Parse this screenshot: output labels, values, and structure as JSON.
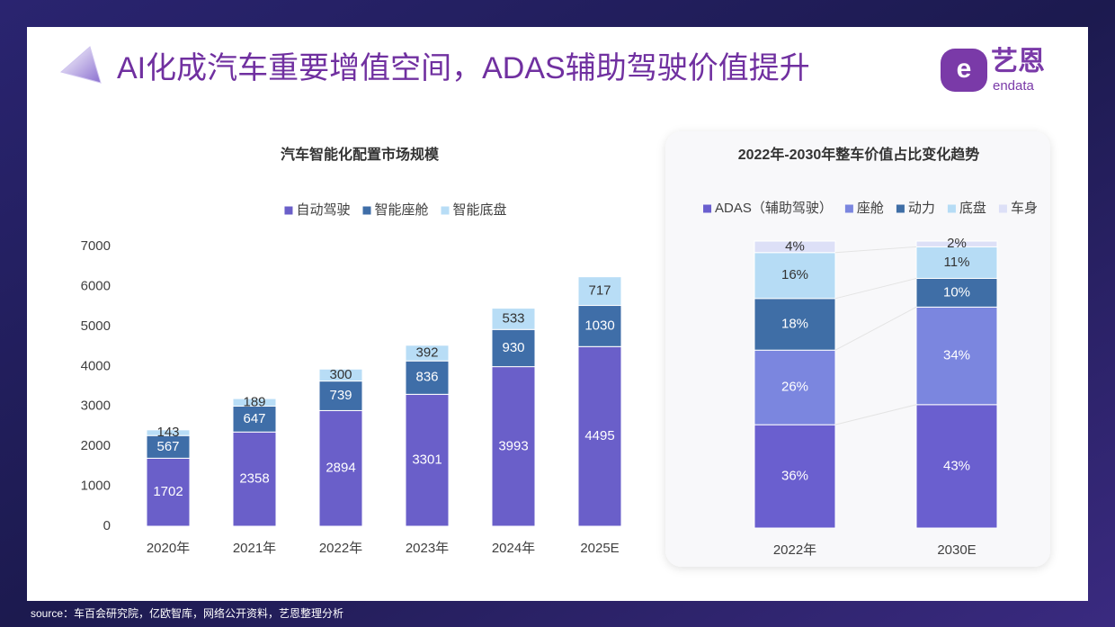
{
  "title": "AI化成汽车重要增值空间，ADAS辅助驾驶价值提升",
  "logo": {
    "name": "艺恩",
    "sub": "endata"
  },
  "source": "source：车百会研究院，亿欧智库，网络公开资料，艺恩整理分析",
  "chart_data": [
    {
      "type": "stacked_bar",
      "title": "汽车智能化配置市场规模",
      "categories": [
        "2020年",
        "2021年",
        "2022年",
        "2023年",
        "2024年",
        "2025E"
      ],
      "series": [
        {
          "name": "自动驾驶",
          "color": "#6a5fc9",
          "values": [
            1702,
            2358,
            2894,
            3301,
            3993,
            4495
          ]
        },
        {
          "name": "智能座舱",
          "color": "#3f6ea8",
          "values": [
            567,
            647,
            739,
            836,
            930,
            1030
          ]
        },
        {
          "name": "智能底盘",
          "color": "#b8ddf6",
          "values": [
            143,
            189,
            300,
            392,
            533,
            717
          ]
        }
      ],
      "ylim": [
        0,
        7000
      ],
      "yticks": [
        0,
        1000,
        2000,
        3000,
        4000,
        5000,
        6000,
        7000
      ],
      "grid": false,
      "legend": "top"
    },
    {
      "type": "percent_stacked_bar",
      "title": "2022年-2030年整车价值占比变化趋势",
      "categories": [
        "2022年",
        "2030E"
      ],
      "series": [
        {
          "name": "ADAS（辅助驾驶）",
          "color": "#6a5fcf",
          "values": [
            36,
            43
          ],
          "value_labels": [
            "36%",
            "43%"
          ]
        },
        {
          "name": "座舱",
          "color": "#7b86df",
          "values": [
            26,
            34
          ],
          "value_labels": [
            "26%",
            "34%"
          ]
        },
        {
          "name": "动力",
          "color": "#3f6ea6",
          "values": [
            18,
            10
          ],
          "value_labels": [
            "18%",
            "10%"
          ]
        },
        {
          "name": "底盘",
          "color": "#b6dcf5",
          "values": [
            16,
            11
          ],
          "value_labels": [
            "16%",
            "11%"
          ]
        },
        {
          "name": "车身",
          "color": "#dde0f7",
          "values": [
            4,
            2
          ],
          "value_labels": [
            "4%",
            "2%"
          ]
        }
      ],
      "legend": "top"
    }
  ]
}
